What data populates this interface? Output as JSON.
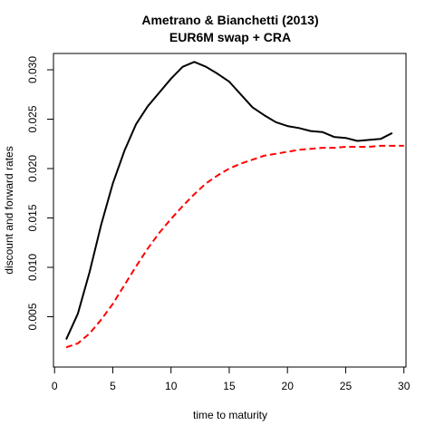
{
  "chart_data": {
    "type": "line",
    "title_line1": "Ametrano & Bianchetti (2013)",
    "title_line2": "EUR6M swap + CRA",
    "xlabel": "time to maturity",
    "ylabel": "discount and forward rates",
    "xlim": [
      0,
      30
    ],
    "ylim": [
      0.0,
      0.031
    ],
    "x_ticks": [
      0,
      5,
      10,
      15,
      20,
      25,
      30
    ],
    "x_tick_labels": [
      "0",
      "5",
      "10",
      "15",
      "20",
      "25",
      "30"
    ],
    "y_ticks": [
      0.005,
      0.01,
      0.015,
      0.02,
      0.025,
      0.03
    ],
    "y_tick_labels": [
      "0.005",
      "0.010",
      "0.015",
      "0.020",
      "0.025",
      "0.030"
    ],
    "grid": false,
    "series": [
      {
        "color": "#000000",
        "line_style": "solid",
        "x": [
          1,
          2,
          3,
          4,
          5,
          6,
          7,
          8,
          9,
          10,
          11,
          12,
          13,
          14,
          15,
          16,
          17,
          18,
          19,
          20,
          21,
          22,
          23,
          24,
          25,
          26,
          27,
          28,
          29
        ],
        "y": [
          0.0027,
          0.0053,
          0.0095,
          0.0143,
          0.0185,
          0.0218,
          0.0245,
          0.0263,
          0.0277,
          0.0291,
          0.0303,
          0.0308,
          0.0303,
          0.0296,
          0.0288,
          0.0275,
          0.0262,
          0.0254,
          0.0247,
          0.0243,
          0.0241,
          0.0238,
          0.0237,
          0.0232,
          0.0231,
          0.0228,
          0.0229,
          0.023,
          0.0236
        ]
      },
      {
        "color": "#ff0000",
        "line_style": "dashed",
        "x": [
          1,
          2,
          3,
          4,
          5,
          6,
          7,
          8,
          9,
          10,
          11,
          12,
          13,
          14,
          15,
          16,
          17,
          18,
          19,
          20,
          21,
          22,
          23,
          24,
          25,
          26,
          27,
          28,
          29,
          30
        ],
        "y": [
          0.0019,
          0.0023,
          0.0033,
          0.0047,
          0.0063,
          0.0082,
          0.0101,
          0.0119,
          0.0135,
          0.0149,
          0.0162,
          0.0174,
          0.0185,
          0.0193,
          0.02,
          0.0205,
          0.0209,
          0.0213,
          0.0215,
          0.0217,
          0.0219,
          0.022,
          0.0221,
          0.0221,
          0.0222,
          0.0222,
          0.0222,
          0.0223,
          0.0223,
          0.0223
        ]
      }
    ]
  }
}
